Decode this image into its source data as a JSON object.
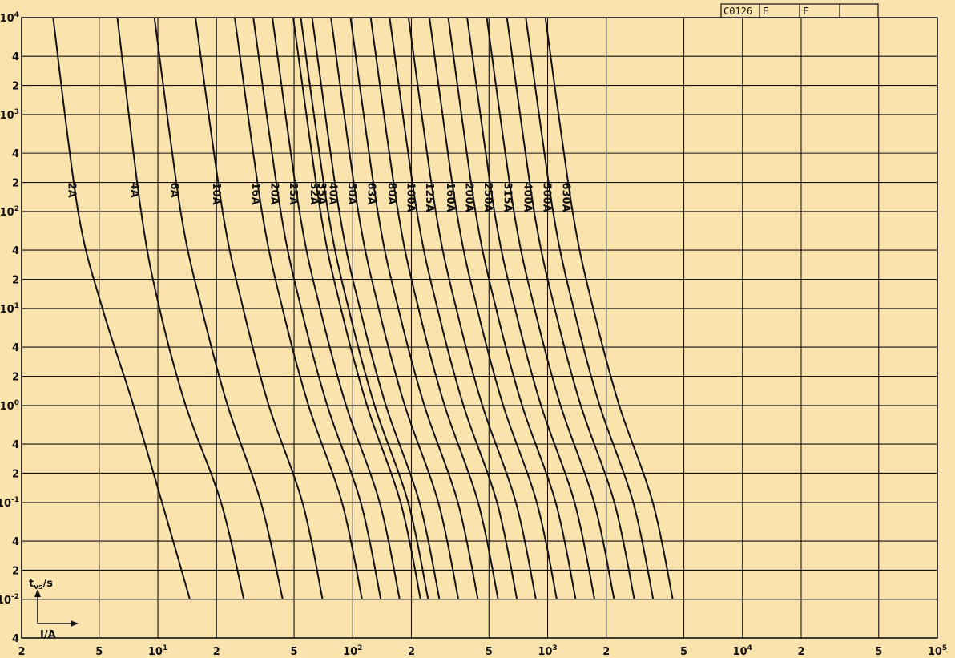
{
  "stamp": {
    "code": "C0126",
    "cell2": "E",
    "cell3": "F",
    "cell4": ""
  },
  "legend": {
    "y_symbol": "t",
    "y_sub": "vs",
    "y_unit": "/s",
    "x_symbol": "I/A"
  },
  "colors": {
    "background": "#fbe3ae",
    "ink": "#111111"
  },
  "chart_data": {
    "type": "line",
    "title": "",
    "xlabel": "I/A",
    "ylabel": "t_vs/s",
    "x_scale": "log",
    "y_scale": "log",
    "xlim": [
      2,
      100000
    ],
    "ylim": [
      0.004,
      10000
    ],
    "grid": true,
    "x_ticks": [
      {
        "label": "2"
      },
      {
        "label": "5"
      },
      {
        "label": "10",
        "sup": "1"
      },
      {
        "label": "2"
      },
      {
        "label": "5"
      },
      {
        "label": "10",
        "sup": "2"
      },
      {
        "label": "2"
      },
      {
        "label": "5"
      },
      {
        "label": "10",
        "sup": "3"
      },
      {
        "label": "2"
      },
      {
        "label": "5"
      },
      {
        "label": "10",
        "sup": "4"
      },
      {
        "label": "2"
      },
      {
        "label": "5"
      },
      {
        "label": "10",
        "sup": "5"
      }
    ],
    "x_tick_values": [
      2,
      5,
      10,
      20,
      50,
      100,
      200,
      500,
      1000,
      2000,
      5000,
      10000,
      20000,
      50000,
      100000
    ],
    "y_ticks": [
      {
        "label": "10",
        "sup": "4"
      },
      {
        "label": "4"
      },
      {
        "label": "2"
      },
      {
        "label": "10",
        "sup": "3"
      },
      {
        "label": "4"
      },
      {
        "label": "2"
      },
      {
        "label": "10",
        "sup": "2"
      },
      {
        "label": "4"
      },
      {
        "label": "2"
      },
      {
        "label": "10",
        "sup": "1"
      },
      {
        "label": "4"
      },
      {
        "label": "2"
      },
      {
        "label": "10",
        "sup": "0"
      },
      {
        "label": "4"
      },
      {
        "label": "2"
      },
      {
        "label": "10",
        "sup": "-1"
      },
      {
        "label": "4"
      },
      {
        "label": "2"
      },
      {
        "label": "10",
        "sup": "-2"
      },
      {
        "label": "4"
      }
    ],
    "y_tick_values": [
      10000,
      4000,
      2000,
      1000,
      400,
      200,
      100,
      40,
      20,
      10,
      4,
      2,
      1,
      0.4,
      0.2,
      0.1,
      0.04,
      0.02,
      0.01,
      0.004
    ],
    "series": [
      {
        "name": "2A",
        "x": [
          2.9,
          3.9,
          5.2,
          7.5,
          10.5,
          14.6
        ],
        "y": [
          10000,
          100,
          10,
          1,
          0.1,
          0.01
        ]
      },
      {
        "name": "4A",
        "x": [
          6.2,
          8.2,
          10.2,
          13.9,
          21.1,
          27.6
        ],
        "y": [
          10000,
          100,
          10,
          1,
          0.1,
          0.01
        ]
      },
      {
        "name": "6A",
        "x": [
          9.6,
          13.1,
          16.8,
          22.8,
          33.8,
          43.7
        ],
        "y": [
          10000,
          100,
          10,
          1,
          0.1,
          0.01
        ]
      },
      {
        "name": "10A",
        "x": [
          15.6,
          21.5,
          27.4,
          37.1,
          55.2,
          70.0
        ],
        "y": [
          10000,
          100,
          10,
          1,
          0.1,
          0.01
        ]
      },
      {
        "name": "16A",
        "x": [
          24.8,
          34.2,
          43.6,
          59.3,
          88.1,
          111.6
        ],
        "y": [
          10000,
          100,
          10,
          1,
          0.1,
          0.01
        ]
      },
      {
        "name": "20A",
        "x": [
          30.9,
          42.7,
          54.4,
          74.0,
          110.0,
          139.3
        ],
        "y": [
          10000,
          100,
          10,
          1,
          0.1,
          0.01
        ]
      },
      {
        "name": "25A",
        "x": [
          38.7,
          53.3,
          68.0,
          92.5,
          137.5,
          174.1
        ],
        "y": [
          10000,
          100,
          10,
          1,
          0.1,
          0.01
        ]
      },
      {
        "name": "32A",
        "x": [
          49.5,
          68.3,
          87.0,
          118.4,
          176.0,
          222.9
        ],
        "y": [
          10000,
          100,
          10,
          1,
          0.1,
          0.01
        ]
      },
      {
        "name": "35A",
        "x": [
          54.1,
          74.7,
          95.2,
          129.5,
          192.5,
          243.8
        ],
        "y": [
          10000,
          100,
          10,
          1,
          0.1,
          0.01
        ]
      },
      {
        "name": "40A",
        "x": [
          61.9,
          85.3,
          108.8,
          148.0,
          220.0,
          278.6
        ],
        "y": [
          10000,
          100,
          10,
          1,
          0.1,
          0.01
        ]
      },
      {
        "name": "50A",
        "x": [
          77.3,
          106.7,
          136.0,
          185.0,
          275.0,
          348.3
        ],
        "y": [
          10000,
          100,
          10,
          1,
          0.1,
          0.01
        ]
      },
      {
        "name": "63A",
        "x": [
          97.4,
          134.4,
          171.4,
          233.1,
          346.5,
          438.8
        ],
        "y": [
          10000,
          100,
          10,
          1,
          0.1,
          0.01
        ]
      },
      {
        "name": "80A",
        "x": [
          123.7,
          170.7,
          217.6,
          296.0,
          440.0,
          557.2
        ],
        "y": [
          10000,
          100,
          10,
          1,
          0.1,
          0.01
        ]
      },
      {
        "name": "100A",
        "x": [
          154.6,
          213.3,
          272.0,
          370.0,
          550.0,
          696.5
        ],
        "y": [
          10000,
          100,
          10,
          1,
          0.1,
          0.01
        ]
      },
      {
        "name": "125A",
        "x": [
          193.3,
          266.6,
          340.0,
          462.5,
          687.5,
          870.6
        ],
        "y": [
          10000,
          100,
          10,
          1,
          0.1,
          0.01
        ]
      },
      {
        "name": "160A",
        "x": [
          247.4,
          341.3,
          435.2,
          592.0,
          880.0,
          1114.4
        ],
        "y": [
          10000,
          100,
          10,
          1,
          0.1,
          0.01
        ]
      },
      {
        "name": "200A",
        "x": [
          309.2,
          426.6,
          544.0,
          740.0,
          1100.0,
          1393.0
        ],
        "y": [
          10000,
          100,
          10,
          1,
          0.1,
          0.01
        ]
      },
      {
        "name": "250A",
        "x": [
          386.5,
          533.3,
          680.0,
          925.0,
          1375.0,
          1741.3
        ],
        "y": [
          10000,
          100,
          10,
          1,
          0.1,
          0.01
        ]
      },
      {
        "name": "315A",
        "x": [
          487.0,
          671.9,
          856.8,
          1165.5,
          1732.5,
          2194.0
        ],
        "y": [
          10000,
          100,
          10,
          1,
          0.1,
          0.01
        ]
      },
      {
        "name": "400A",
        "x": [
          618.4,
          853.2,
          1088.0,
          1480.0,
          2200.0,
          2786.0
        ],
        "y": [
          10000,
          100,
          10,
          1,
          0.1,
          0.01
        ]
      },
      {
        "name": "500A",
        "x": [
          773.0,
          1066.5,
          1360.0,
          1850.0,
          2750.0,
          3482.5
        ],
        "y": [
          10000,
          100,
          10,
          1,
          0.1,
          0.01
        ]
      },
      {
        "name": "630A",
        "x": [
          974.0,
          1343.8,
          1713.6,
          2331.0,
          3465.0,
          4388.0
        ],
        "y": [
          10000,
          100,
          10,
          1,
          0.1,
          0.01
        ]
      }
    ]
  }
}
